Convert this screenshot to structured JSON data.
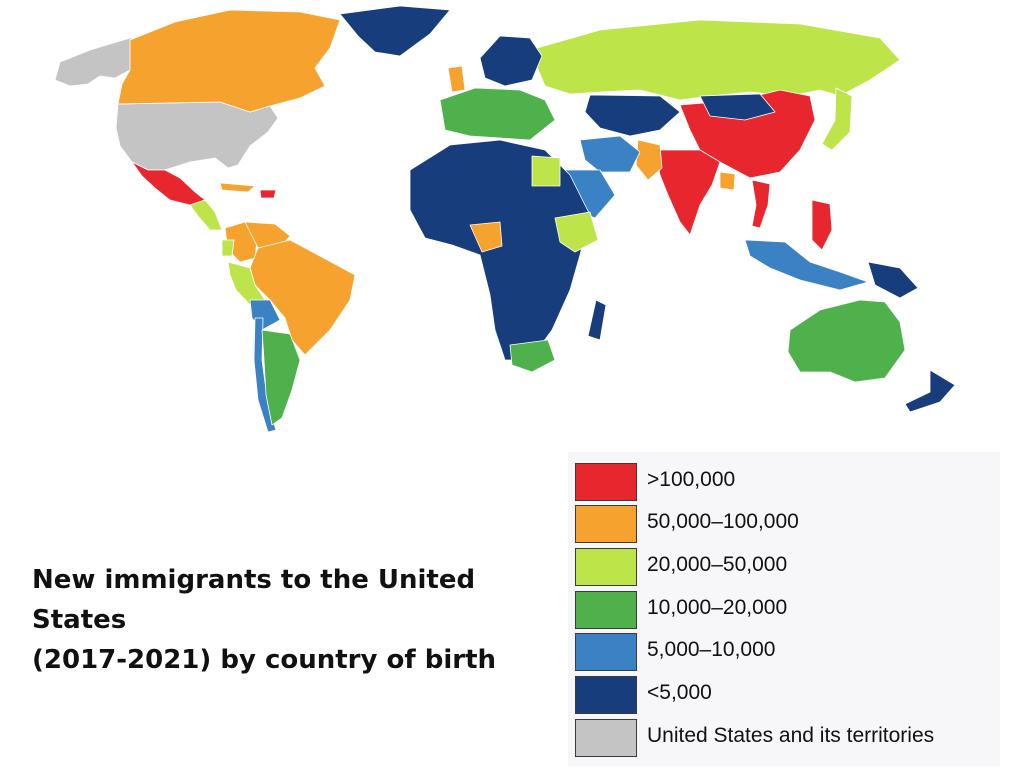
{
  "title": {
    "line1": "New immigrants to the United States",
    "line2": "(2017-2021) by country of birth"
  },
  "legend": {
    "items": [
      {
        "key": "gt100k",
        "label": ">100,000",
        "color": "#e8262d"
      },
      {
        "key": "50k-100k",
        "label": "50,000–100,000",
        "color": "#f6a22f"
      },
      {
        "key": "20k-50k",
        "label": "20,000–50,000",
        "color": "#bde54a"
      },
      {
        "key": "10k-20k",
        "label": "10,000–20,000",
        "color": "#4fb14c"
      },
      {
        "key": "5k-10k",
        "label": "5,000–10,000",
        "color": "#3b82c4"
      },
      {
        "key": "lt5k",
        "label": "<5,000",
        "color": "#173d7c"
      },
      {
        "key": "us",
        "label": "United States and its territories",
        "color": "#c4c4c4"
      }
    ]
  },
  "map": {
    "regions": [
      {
        "name": "Alaska",
        "class": "us"
      },
      {
        "name": "United States",
        "class": "us"
      },
      {
        "name": "Canada",
        "class": "50k-100k"
      },
      {
        "name": "Greenland",
        "class": "lt5k"
      },
      {
        "name": "Mexico",
        "class": "gt100k"
      },
      {
        "name": "Cuba",
        "class": "50k-100k"
      },
      {
        "name": "Dominican Republic",
        "class": "gt100k"
      },
      {
        "name": "Central America",
        "class": "20k-50k"
      },
      {
        "name": "Colombia",
        "class": "50k-100k"
      },
      {
        "name": "Venezuela",
        "class": "50k-100k"
      },
      {
        "name": "Brazil",
        "class": "50k-100k"
      },
      {
        "name": "Peru",
        "class": "20k-50k"
      },
      {
        "name": "Ecuador",
        "class": "20k-50k"
      },
      {
        "name": "Bolivia",
        "class": "5k-10k"
      },
      {
        "name": "Chile",
        "class": "5k-10k"
      },
      {
        "name": "Argentina",
        "class": "10k-20k"
      },
      {
        "name": "Russia",
        "class": "20k-50k"
      },
      {
        "name": "China",
        "class": "gt100k"
      },
      {
        "name": "India",
        "class": "gt100k"
      },
      {
        "name": "Vietnam",
        "class": "gt100k"
      },
      {
        "name": "Philippines",
        "class": "gt100k"
      },
      {
        "name": "Pakistan",
        "class": "50k-100k"
      },
      {
        "name": "Bangladesh",
        "class": "50k-100k"
      },
      {
        "name": "Kazakhstan",
        "class": "lt5k"
      },
      {
        "name": "Mongolia",
        "class": "lt5k"
      },
      {
        "name": "Iran",
        "class": "5k-10k"
      },
      {
        "name": "Saudi Arabia",
        "class": "5k-10k"
      },
      {
        "name": "Western Europe",
        "class": "10k-20k"
      },
      {
        "name": "United Kingdom",
        "class": "50k-100k"
      },
      {
        "name": "Scandinavia",
        "class": "lt5k"
      },
      {
        "name": "Africa",
        "class": "lt5k"
      },
      {
        "name": "Nigeria",
        "class": "50k-100k"
      },
      {
        "name": "Egypt",
        "class": "20k-50k"
      },
      {
        "name": "Ethiopia",
        "class": "20k-50k"
      },
      {
        "name": "South Africa",
        "class": "10k-20k"
      },
      {
        "name": "Indonesia",
        "class": "5k-10k"
      },
      {
        "name": "Papua New Guinea",
        "class": "lt5k"
      },
      {
        "name": "Australia",
        "class": "10k-20k"
      },
      {
        "name": "New Zealand",
        "class": "lt5k"
      },
      {
        "name": "Japan",
        "class": "20k-50k"
      },
      {
        "name": "Madagascar",
        "class": "lt5k"
      }
    ]
  }
}
